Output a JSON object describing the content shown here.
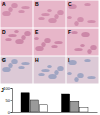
{
  "panels": [
    {
      "label": "A"
    },
    {
      "label": "B"
    },
    {
      "label": "C"
    },
    {
      "label": "D"
    },
    {
      "label": "E"
    },
    {
      "label": "F"
    },
    {
      "label": "G"
    },
    {
      "label": "H"
    },
    {
      "label": "I"
    }
  ],
  "chart_label": "J",
  "chart_data": {
    "type": "bar",
    "categories": [
      null,
      null
    ],
    "series": [
      {
        "color": "#000000",
        "values": [
          80,
          75
        ]
      },
      {
        "color": "#9a9a9a",
        "values": [
          50,
          45
        ]
      },
      {
        "color": "#ffffff",
        "values": [
          30,
          20
        ]
      }
    ],
    "ylim": [
      0,
      100
    ],
    "yticks": [
      0,
      50,
      100
    ],
    "tick_labels": "y"
  }
}
